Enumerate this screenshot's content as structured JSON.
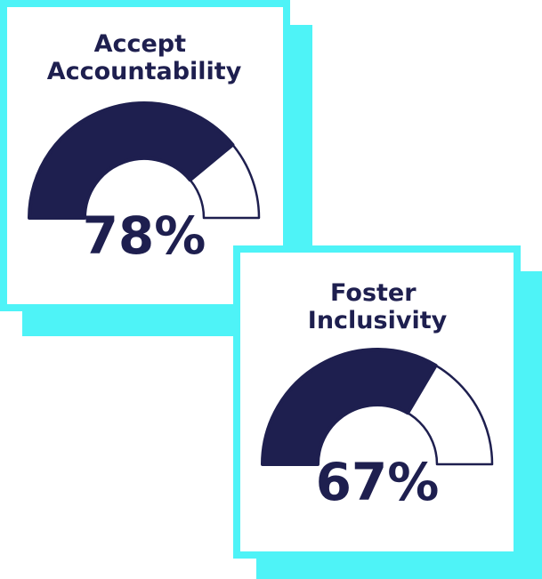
{
  "chart_data": [
    {
      "type": "gauge",
      "title": "Accept Accountability",
      "values": [
        78
      ],
      "value_labels": [
        "78%"
      ],
      "ylim": [
        0,
        100
      ],
      "color": "#1e1f4f",
      "frame_color": "#4ef3f7"
    },
    {
      "type": "gauge",
      "title": "Foster Inclusivity",
      "values": [
        67
      ],
      "value_labels": [
        "67%"
      ],
      "ylim": [
        0,
        100
      ],
      "color": "#1e1f4f",
      "frame_color": "#4ef3f7"
    }
  ]
}
